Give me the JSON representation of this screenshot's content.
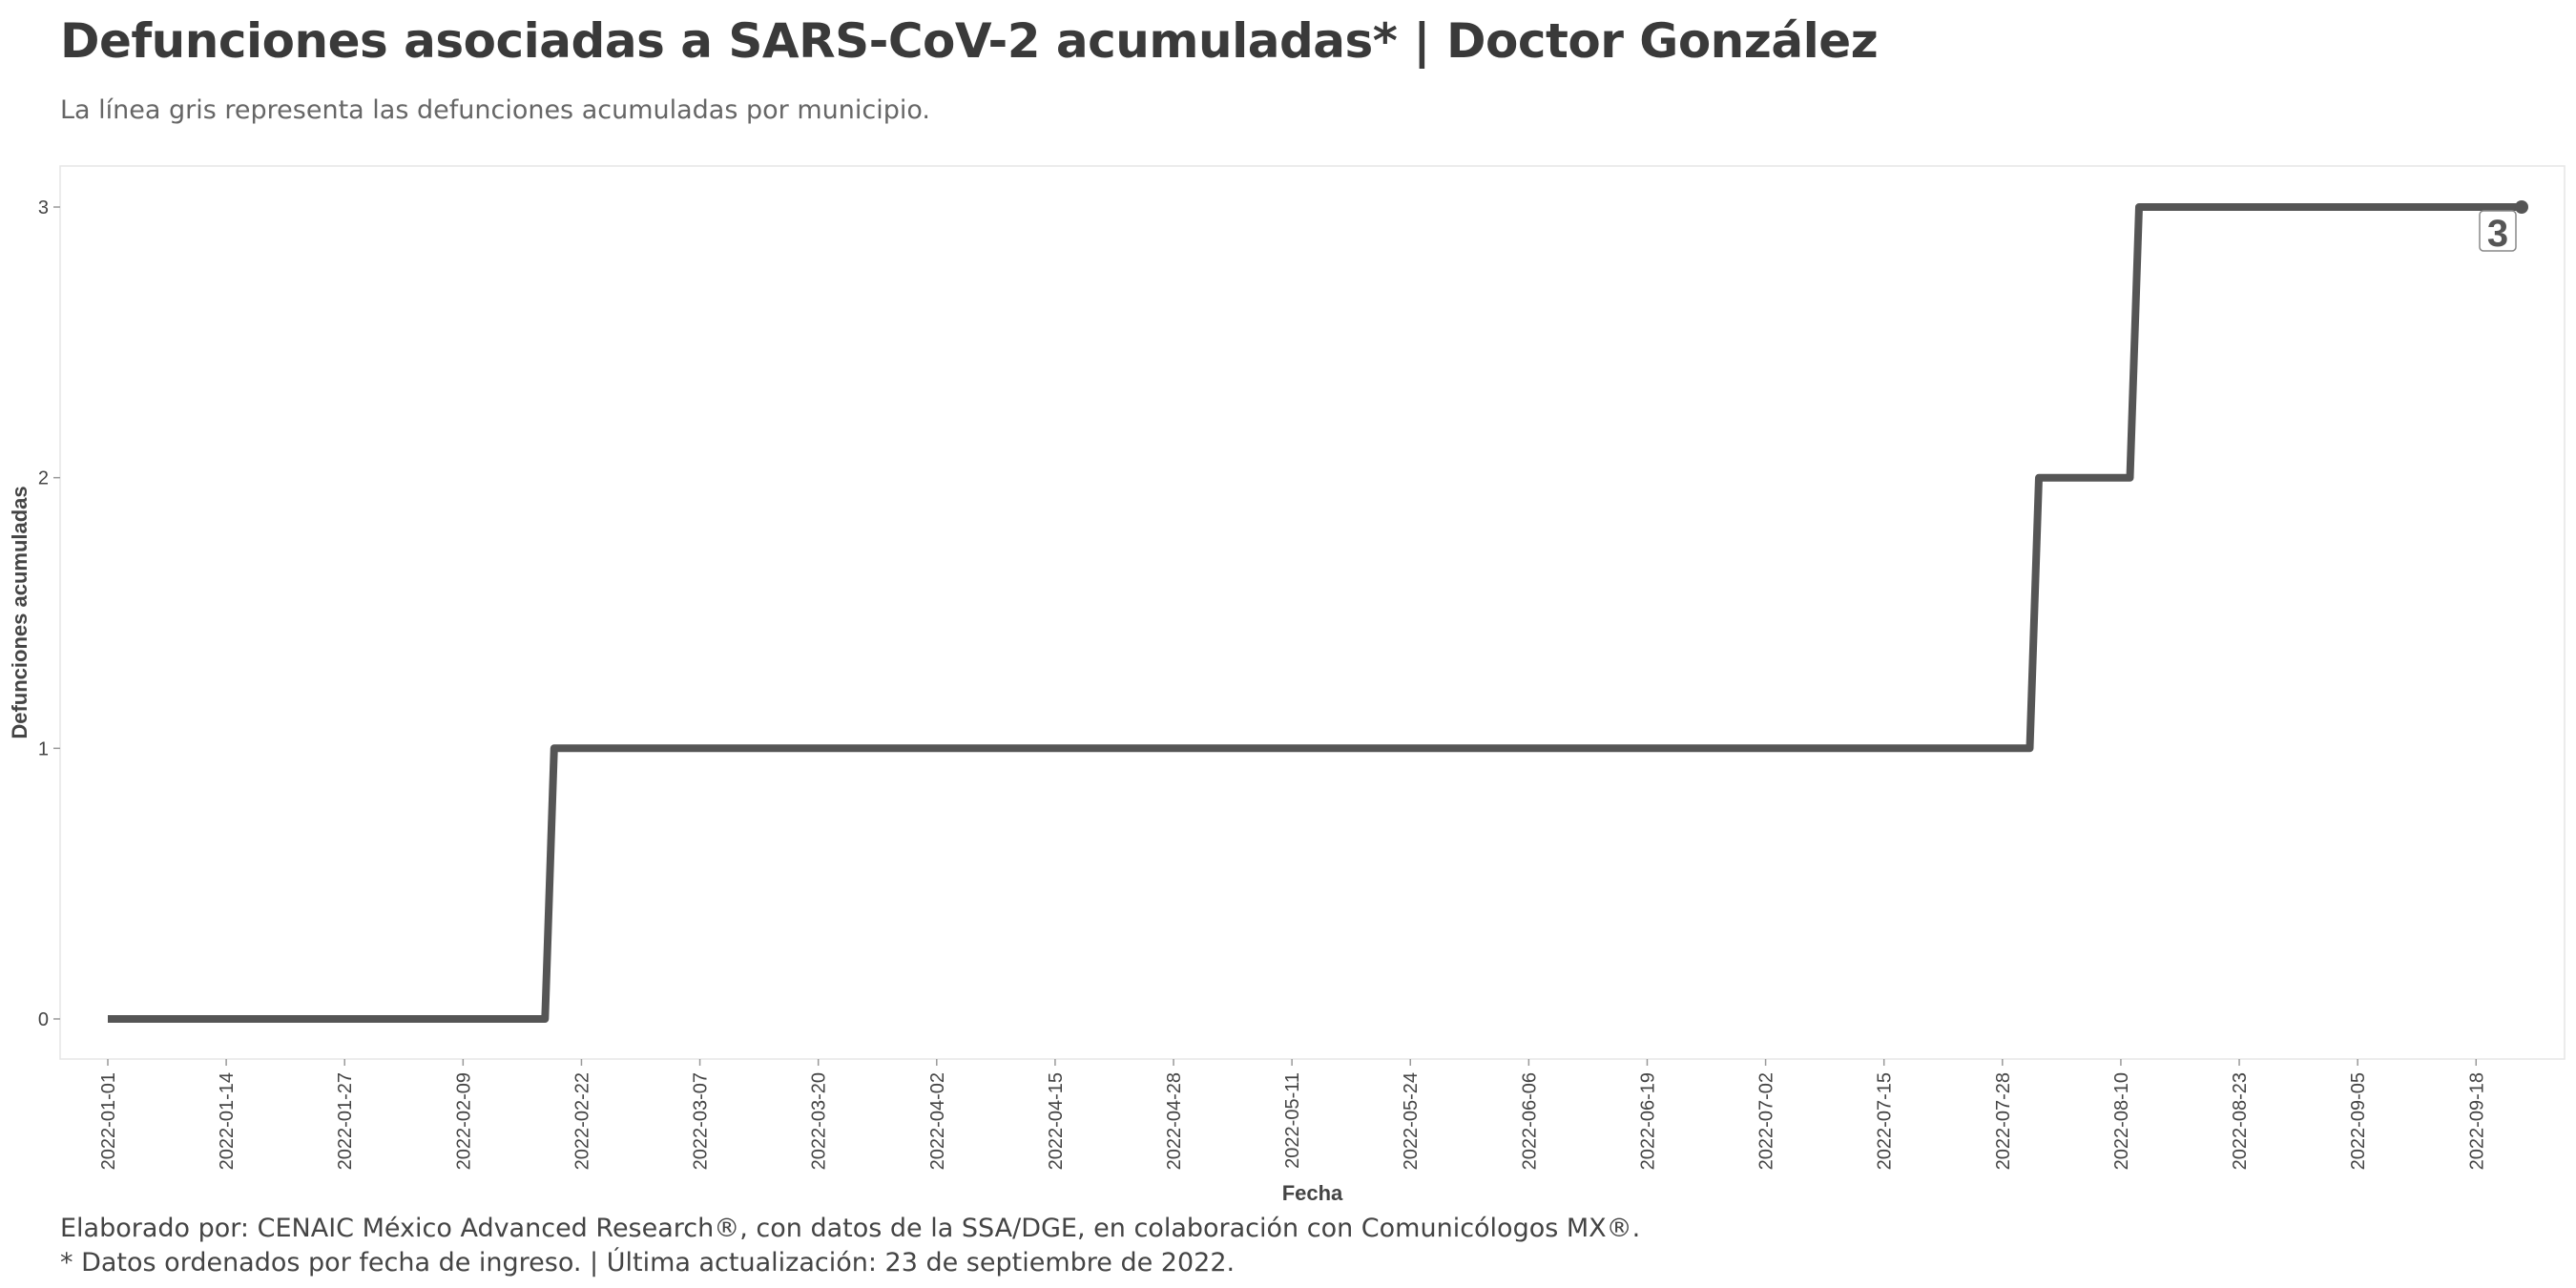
{
  "header": {
    "title": "Defunciones asociadas a SARS-CoV-2 acumuladas* | Doctor González",
    "subtitle": "La línea gris representa las defunciones acumuladas por municipio."
  },
  "caption": {
    "line1": "Elaborado por: CENAIC México Advanced Research®, con datos de la SSA/DGE, en colaboración con Comunicólogos MX®.",
    "line2": "* Datos ordenados por fecha de ingreso. | Última actualización: 23 de septiembre de 2022."
  },
  "colors": {
    "line": "#555555",
    "panel_border": "#e6e6e6"
  },
  "chart_data": {
    "type": "line",
    "step": true,
    "xlabel": "Fecha",
    "ylabel": "Defunciones acumuladas",
    "xlim": [
      "2022-01-01",
      "2022-09-23"
    ],
    "ylim": [
      0,
      3
    ],
    "x_ticks": [
      "2022-01-01",
      "2022-01-14",
      "2022-01-27",
      "2022-02-09",
      "2022-02-22",
      "2022-03-07",
      "2022-03-20",
      "2022-04-02",
      "2022-04-15",
      "2022-04-28",
      "2022-05-11",
      "2022-05-24",
      "2022-06-06",
      "2022-06-19",
      "2022-07-02",
      "2022-07-15",
      "2022-07-28",
      "2022-08-10",
      "2022-08-23",
      "2022-09-05",
      "2022-09-18"
    ],
    "y_ticks": [
      0,
      1,
      2,
      3
    ],
    "grid": false,
    "series": [
      {
        "x": [
          "2022-01-01",
          "2022-02-18",
          "2022-02-19",
          "2022-07-31",
          "2022-08-01",
          "2022-08-11",
          "2022-08-12",
          "2022-09-23"
        ],
        "y": [
          0,
          0,
          1,
          1,
          2,
          2,
          3,
          3
        ]
      }
    ],
    "last_value_label": "3"
  }
}
